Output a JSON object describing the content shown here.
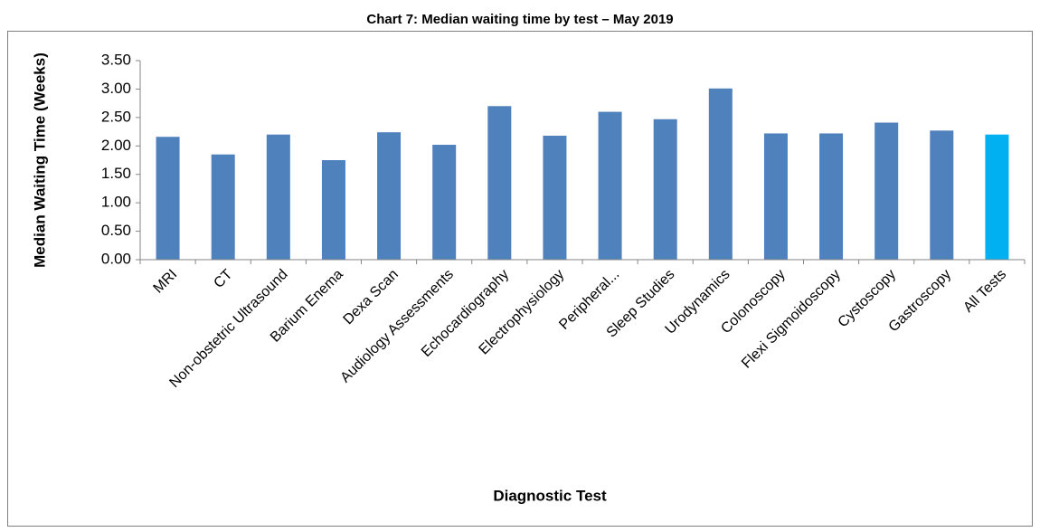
{
  "chart_data": {
    "type": "bar",
    "title": "Chart 7: Median waiting time by test – May 2019",
    "x_label": "Diagnostic Test",
    "y_label": "Median Waiting Time (Weeks)",
    "categories": [
      "MRI",
      "CT",
      "Non-obstetric Ultrasound",
      "Barium Enema",
      "Dexa Scan",
      "Audiology Assessments",
      "Echocardiography",
      "Electrophysiology",
      "Peripheral...",
      "Sleep Studies",
      "Urodynamics",
      "Colonoscopy",
      "Flexi Sigmoidoscopy",
      "Cystoscopy",
      "Gastroscopy",
      "All Tests"
    ],
    "values": [
      2.16,
      1.85,
      2.2,
      1.75,
      2.24,
      2.02,
      2.7,
      2.18,
      2.6,
      2.47,
      3.01,
      2.22,
      2.22,
      2.41,
      2.27,
      2.2
    ],
    "colors": [
      "#4f81bd",
      "#4f81bd",
      "#4f81bd",
      "#4f81bd",
      "#4f81bd",
      "#4f81bd",
      "#4f81bd",
      "#4f81bd",
      "#4f81bd",
      "#4f81bd",
      "#4f81bd",
      "#4f81bd",
      "#4f81bd",
      "#4f81bd",
      "#4f81bd",
      "#00b0f0"
    ],
    "ylim": [
      0,
      3.5
    ],
    "yticks": [
      {
        "value": 0,
        "label": "0.00"
      },
      {
        "value": 0.5,
        "label": "0.50"
      },
      {
        "value": 1,
        "label": "1.00"
      },
      {
        "value": 1.5,
        "label": "1.50"
      },
      {
        "value": 2,
        "label": "2.00"
      },
      {
        "value": 2.5,
        "label": "2.50"
      },
      {
        "value": 3,
        "label": "3.00"
      },
      {
        "value": 3.5,
        "label": "3.50"
      }
    ],
    "grid": false
  }
}
